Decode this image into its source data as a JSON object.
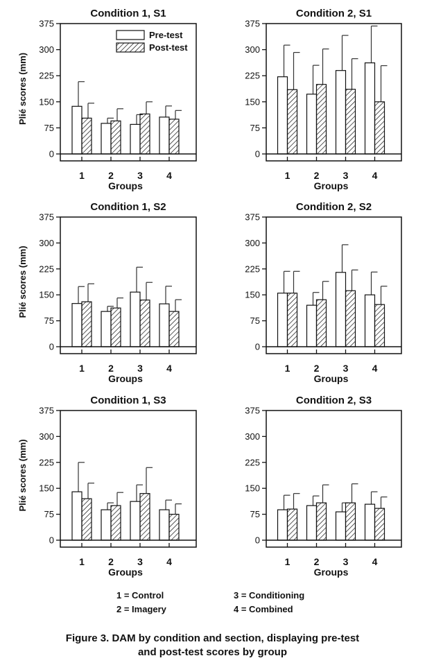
{
  "chart_data": [
    {
      "type": "bar",
      "title": "Condition 1, S1",
      "xlabel": "Groups",
      "ylabel": "Plié scores (mm)",
      "ylim": [
        0,
        375
      ],
      "yticks": [
        "0",
        "75",
        "150",
        "225",
        "300",
        "375"
      ],
      "categories": [
        "1",
        "2",
        "3",
        "4"
      ],
      "series": [
        {
          "name": "Pre-test",
          "values": [
            137,
            88,
            85,
            106
          ],
          "error_top": [
            208,
            103,
            113,
            138
          ]
        },
        {
          "name": "Post-test",
          "values": [
            103,
            95,
            115,
            100
          ],
          "error_top": [
            146,
            130,
            150,
            125
          ]
        }
      ],
      "legend": "top-right",
      "grid": false
    },
    {
      "type": "bar",
      "title": "Condition 2, S1",
      "xlabel": "Groups",
      "ylabel": "",
      "ylim": [
        0,
        375
      ],
      "yticks": [
        "0",
        "75",
        "150",
        "225",
        "300",
        "375"
      ],
      "categories": [
        "1",
        "2",
        "3",
        "4"
      ],
      "series": [
        {
          "name": "Pre-test",
          "values": [
            222,
            172,
            240,
            262
          ],
          "error_top": [
            313,
            255,
            341,
            368
          ]
        },
        {
          "name": "Post-test",
          "values": [
            185,
            200,
            186,
            150
          ],
          "error_top": [
            292,
            302,
            274,
            254
          ]
        }
      ],
      "grid": false
    },
    {
      "type": "bar",
      "title": "Condition 1, S2",
      "xlabel": "Groups",
      "ylabel": "Plié scores (mm)",
      "ylim": [
        0,
        375
      ],
      "yticks": [
        "0",
        "75",
        "150",
        "225",
        "300",
        "375"
      ],
      "categories": [
        "1",
        "2",
        "3",
        "4"
      ],
      "series": [
        {
          "name": "Pre-test",
          "values": [
            125,
            102,
            158,
            124
          ],
          "error_top": [
            174,
            117,
            230,
            175
          ]
        },
        {
          "name": "Post-test",
          "values": [
            130,
            112,
            135,
            102
          ],
          "error_top": [
            182,
            141,
            186,
            136
          ]
        }
      ],
      "grid": false
    },
    {
      "type": "bar",
      "title": "Condition 2, S2",
      "xlabel": "Groups",
      "ylabel": "",
      "ylim": [
        0,
        375
      ],
      "yticks": [
        "0",
        "75",
        "150",
        "225",
        "300",
        "375"
      ],
      "categories": [
        "1",
        "2",
        "3",
        "4"
      ],
      "series": [
        {
          "name": "Pre-test",
          "values": [
            155,
            120,
            215,
            150
          ],
          "error_top": [
            218,
            157,
            295,
            216
          ]
        },
        {
          "name": "Post-test",
          "values": [
            155,
            136,
            162,
            122
          ],
          "error_top": [
            218,
            189,
            222,
            175
          ]
        }
      ],
      "grid": false
    },
    {
      "type": "bar",
      "title": "Condition 1, S3",
      "xlabel": "Groups",
      "ylabel": "Plié scores (mm)",
      "ylim": [
        0,
        375
      ],
      "yticks": [
        "0",
        "75",
        "150",
        "225",
        "300",
        "375"
      ],
      "categories": [
        "1",
        "2",
        "3",
        "4"
      ],
      "series": [
        {
          "name": "Pre-test",
          "values": [
            140,
            88,
            112,
            88
          ],
          "error_top": [
            225,
            108,
            160,
            116
          ]
        },
        {
          "name": "Post-test",
          "values": [
            120,
            100,
            135,
            75
          ],
          "error_top": [
            165,
            138,
            210,
            105
          ]
        }
      ],
      "grid": false
    },
    {
      "type": "bar",
      "title": "Condition 2, S3",
      "xlabel": "Groups",
      "ylabel": "",
      "ylim": [
        0,
        375
      ],
      "yticks": [
        "0",
        "75",
        "150",
        "225",
        "300",
        "375"
      ],
      "categories": [
        "1",
        "2",
        "3",
        "4"
      ],
      "series": [
        {
          "name": "Pre-test",
          "values": [
            88,
            100,
            82,
            104
          ],
          "error_top": [
            130,
            128,
            108,
            140
          ]
        },
        {
          "name": "Post-test",
          "values": [
            90,
            108,
            108,
            92
          ],
          "error_top": [
            135,
            160,
            163,
            125
          ]
        }
      ],
      "grid": false
    }
  ],
  "group_key": {
    "k1": "1 = Control",
    "k2": "2 = Imagery",
    "k3": "3 = Conditioning",
    "k4": "4 = Combined"
  },
  "caption": {
    "line1": "Figure 3. DAM by condition and section, displaying pre-test",
    "line2": "and post-test scores by group"
  }
}
